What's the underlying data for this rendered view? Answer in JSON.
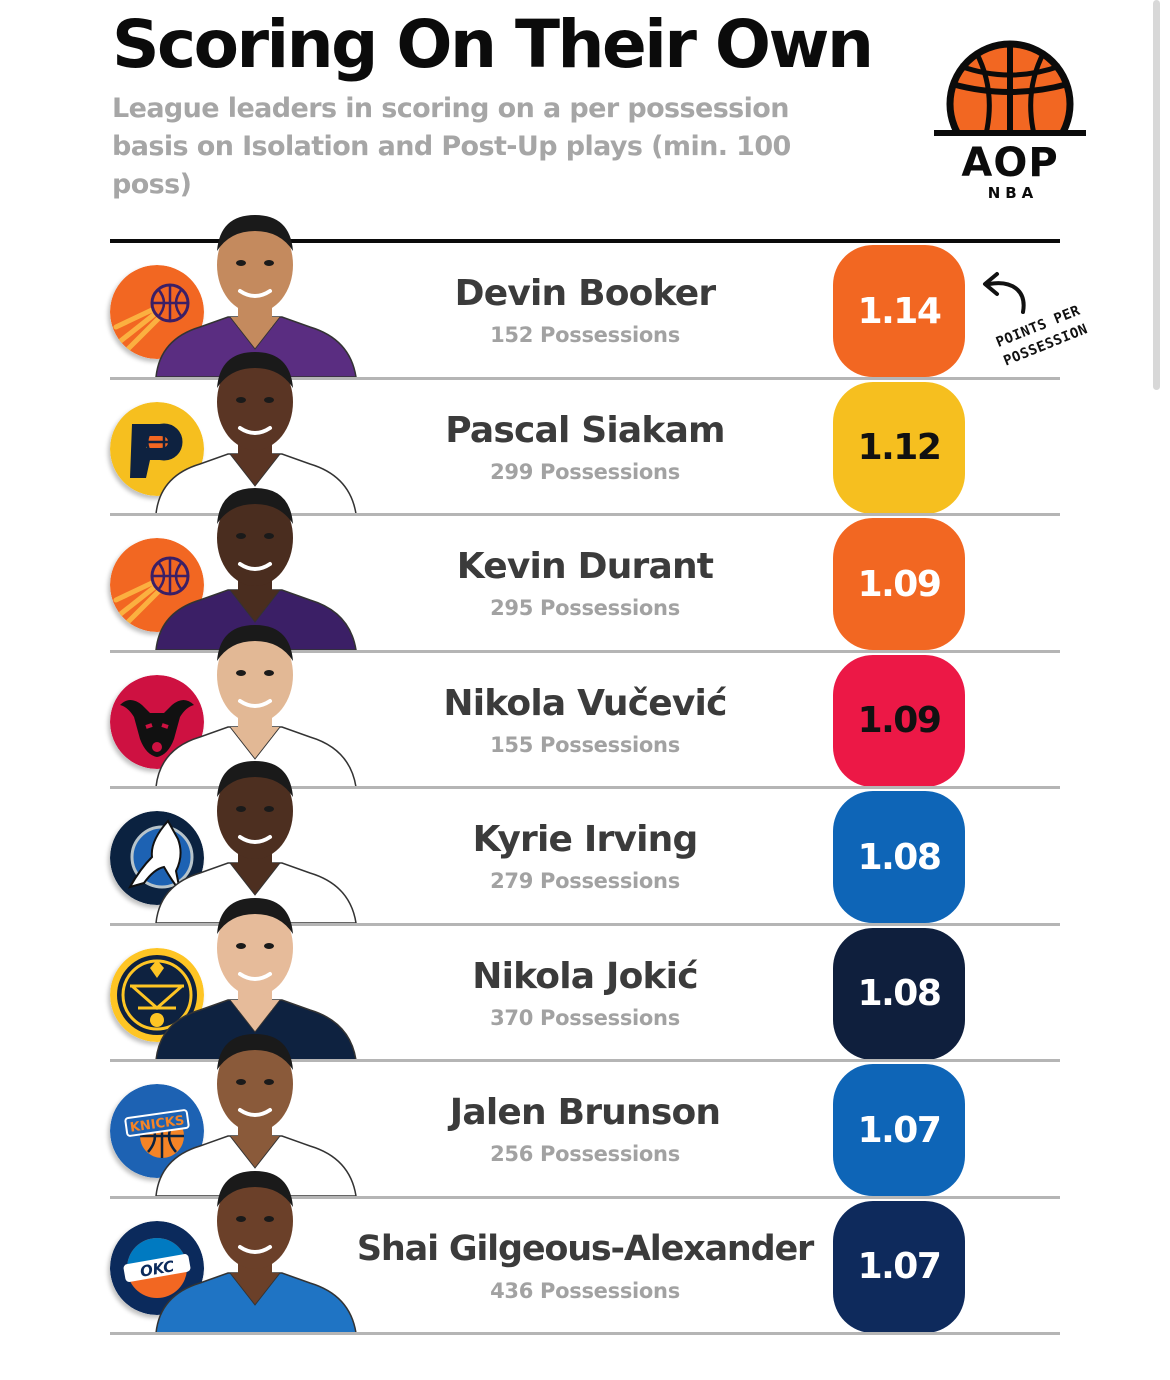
{
  "header": {
    "title": "Scoring On Their Own",
    "subtitle": "League leaders in scoring on a per possession basis on Isolation and Post-Up plays (min. 100 poss)"
  },
  "brand": {
    "logo_text": "AOP",
    "logo_sub": "NBA"
  },
  "annotation": {
    "text": "POINTS PER POSSESSION"
  },
  "chart_data": {
    "type": "table",
    "title": "Scoring On Their Own",
    "subtitle": "League leaders in scoring on a per possession basis on Isolation and Post-Up plays (min. 100 poss)",
    "rows": [
      {
        "player": "Devin Booker",
        "possessions": "152 Possessions",
        "ppp": "1.14",
        "team_logo": "phoenix-suns-logo",
        "badge_color": "#f26722",
        "text_color": "#ffffff"
      },
      {
        "player": "Pascal Siakam",
        "possessions": "299 Possessions",
        "ppp": "1.12",
        "team_logo": "indiana-pacers-logo",
        "badge_color": "#f6bf1f",
        "text_color": "#111111"
      },
      {
        "player": "Kevin Durant",
        "possessions": "295 Possessions",
        "ppp": "1.09",
        "team_logo": "phoenix-suns-logo",
        "badge_color": "#f26722",
        "text_color": "#ffffff"
      },
      {
        "player": "Nikola Vučević",
        "possessions": "155 Possessions",
        "ppp": "1.09",
        "team_logo": "chicago-bulls-logo",
        "badge_color": "#ec1846",
        "text_color": "#111111"
      },
      {
        "player": "Kyrie Irving",
        "possessions": "279 Possessions",
        "ppp": "1.08",
        "team_logo": "dallas-mavericks-logo",
        "badge_color": "#0e65b7",
        "text_color": "#ffffff"
      },
      {
        "player": "Nikola Jokić",
        "possessions": "370 Possessions",
        "ppp": "1.08",
        "team_logo": "denver-nuggets-logo",
        "badge_color": "#0f1f3d",
        "text_color": "#ffffff"
      },
      {
        "player": "Jalen Brunson",
        "possessions": "256 Possessions",
        "ppp": "1.07",
        "team_logo": "new-york-knicks-logo",
        "badge_color": "#0e65b7",
        "text_color": "#ffffff"
      },
      {
        "player": "Shai Gilgeous-Alexander",
        "possessions": "436 Possessions",
        "ppp": "1.07",
        "team_logo": "okc-thunder-logo",
        "badge_color": "#0e2a5c",
        "text_color": "#ffffff"
      }
    ],
    "jersey_colors": [
      "#5a2d81",
      "#ffffff",
      "#3b1f66",
      "#ffffff",
      "#ffffff",
      "#0e2240",
      "#ffffff",
      "#1f74c4"
    ],
    "skin_tones": [
      "#c48a5e",
      "#5a3524",
      "#4a2d1f",
      "#e2b895",
      "#4d2f20",
      "#e6bb9a",
      "#8a5a3a",
      "#6b4029"
    ]
  }
}
